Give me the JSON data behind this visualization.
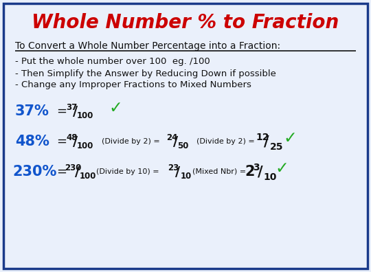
{
  "title": "Whole Number % to Fraction",
  "title_color": "#CC0000",
  "bg_color": "#EAF0FB",
  "border_color": "#1A3A8A",
  "subtitle": "To Convert a Whole Number Percentage into a Fraction:",
  "bullets": [
    "- Put the whole number over 100  eg. /100",
    "- Then Simplify the Answer by Reducing Down if possible",
    "- Change any Improper Fractions to Mixed Numbers"
  ],
  "blue_color": "#1155CC",
  "black_color": "#111111",
  "green_color": "#22AA22"
}
